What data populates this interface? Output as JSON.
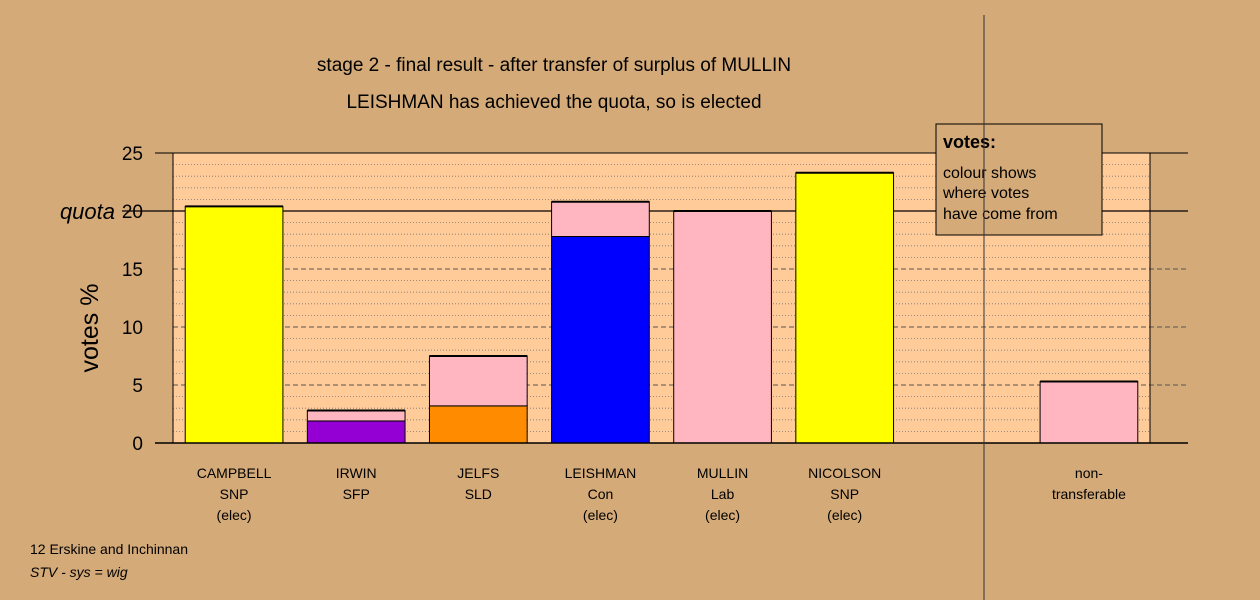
{
  "chart_data": {
    "type": "bar",
    "stacked": true,
    "title": "stage 2 - final result - after transfer of surplus of MULLIN",
    "subtitle": "LEISHMAN has achieved the quota, so is elected",
    "ylabel": "votes %",
    "ylim": [
      0,
      25
    ],
    "yticks": [
      0,
      5,
      10,
      15,
      20,
      25
    ],
    "quota": 20,
    "quota_label": "quota",
    "grid": true,
    "categories": [
      {
        "lines": [
          "CAMPBELL",
          "SNP",
          "(elec)"
        ],
        "segments": [
          {
            "value": 20.4,
            "color": "#ffff00"
          }
        ]
      },
      {
        "lines": [
          "IRWIN",
          "SFP"
        ],
        "segments": [
          {
            "value": 1.9,
            "color": "#9400d3"
          },
          {
            "value": 0.9,
            "color": "#ffb6c1"
          }
        ]
      },
      {
        "lines": [
          "JELFS",
          "SLD"
        ],
        "segments": [
          {
            "value": 3.2,
            "color": "#ff8c00"
          },
          {
            "value": 4.3,
            "color": "#ffb6c1"
          }
        ]
      },
      {
        "lines": [
          "LEISHMAN",
          "Con",
          "(elec)"
        ],
        "segments": [
          {
            "value": 17.8,
            "color": "#0000ff"
          },
          {
            "value": 3.0,
            "color": "#ffb6c1"
          }
        ]
      },
      {
        "lines": [
          "MULLIN",
          "Lab",
          "(elec)"
        ],
        "segments": [
          {
            "value": 20.0,
            "color": "#ffb6c1"
          }
        ]
      },
      {
        "lines": [
          "NICOLSON",
          "SNP",
          "(elec)"
        ],
        "segments": [
          {
            "value": 23.3,
            "color": "#ffff00"
          }
        ]
      },
      {
        "lines": [],
        "segments": []
      },
      {
        "lines": [
          "non-",
          "transferable"
        ],
        "segments": [
          {
            "value": 5.3,
            "color": "#ffb6c1"
          }
        ]
      }
    ],
    "legend": {
      "title": "votes:",
      "lines": [
        "colour shows",
        "where votes",
        "have come from"
      ],
      "placement": "top-right"
    }
  },
  "footer": {
    "line1": "12 Erskine and Inchinnan",
    "line2": "STV - sys = wig"
  },
  "colors": {
    "background": "#d4aa78",
    "plot_background": "#ffcc99",
    "legend_background": "#d4aa78"
  }
}
